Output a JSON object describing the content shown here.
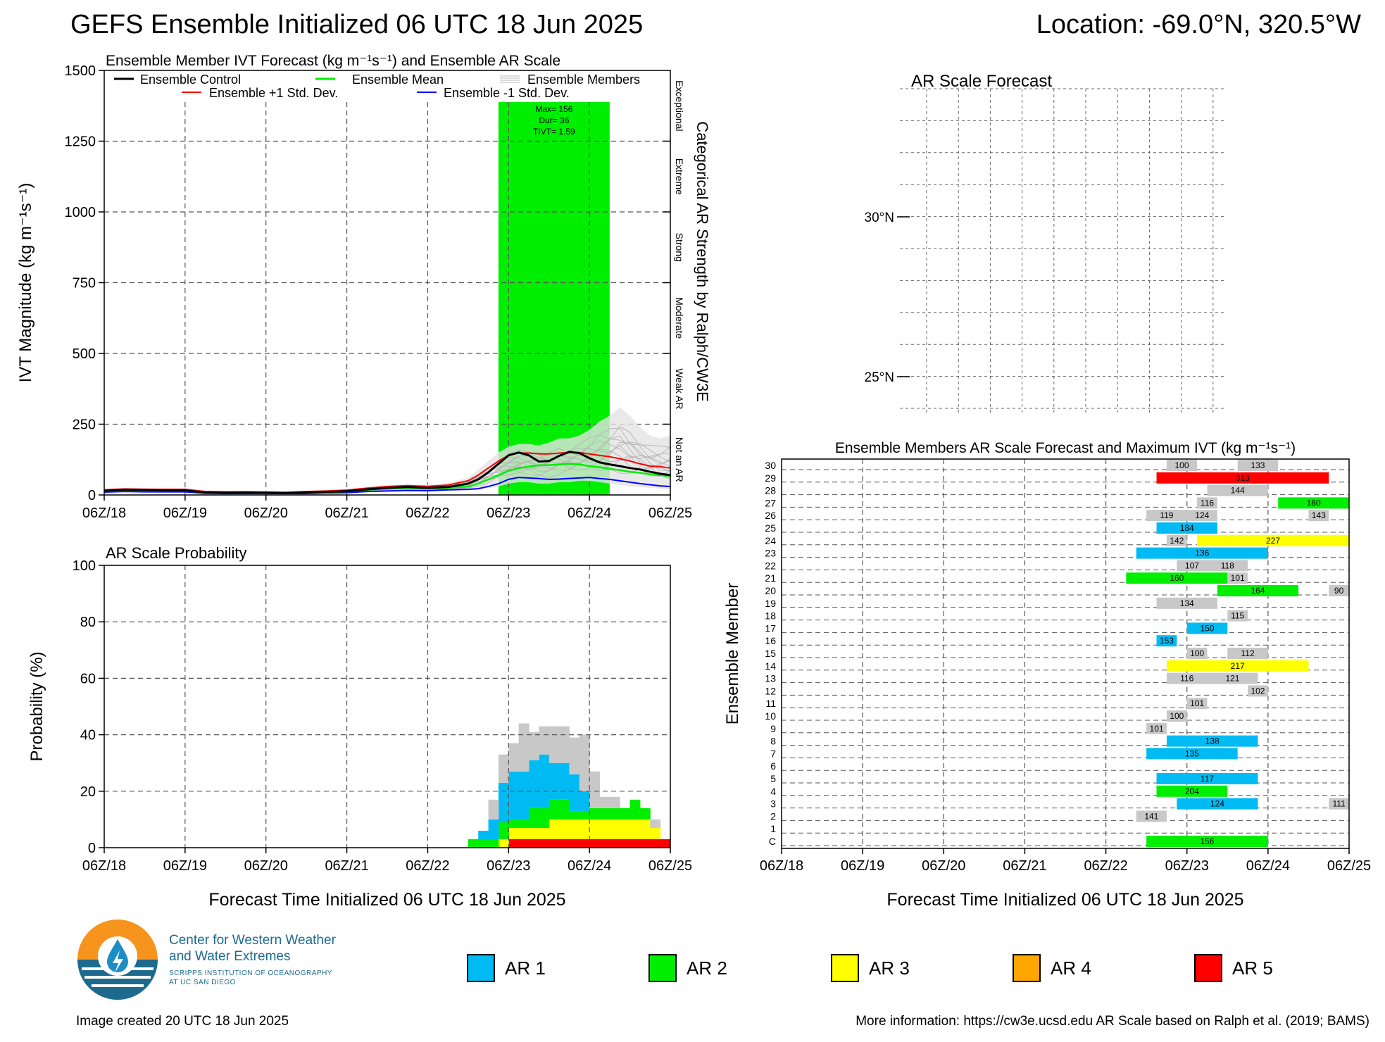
{
  "header": {
    "title": "GEFS Ensemble Initialized 06 UTC 18 Jun 2025",
    "location": "Location: -69.0°N, 320.5°W"
  },
  "x_ticks": [
    "06Z/18",
    "06Z/19",
    "06Z/20",
    "06Z/21",
    "06Z/22",
    "06Z/23",
    "06Z/24",
    "06Z/25"
  ],
  "x_axis_label": "Forecast Time Initialized 06 UTC 18 Jun 2025",
  "colors": {
    "ar1": "#00bbf3",
    "ar2": "#00ee00",
    "ar3": "#ffff00",
    "ar4": "#ffa500",
    "ar5": "#ff0000",
    "none": "#c8c8c8",
    "control": "#000000",
    "mean": "#00ee00",
    "plus": "#ff0000",
    "minus": "#0000ff",
    "members": "#b8b8b8"
  },
  "chart_data": [
    {
      "type": "line",
      "title": "Ensemble Member IVT Forecast (kg m⁻¹s⁻¹) and Ensemble AR Scale",
      "ylabel": "IVT Magnitude (kg m⁻¹s⁻¹)",
      "right_label": "Categorical AR Strength by Ralph/CW3E",
      "ylim": [
        0,
        1500
      ],
      "yticks": [
        0,
        250,
        500,
        750,
        1000,
        1250,
        1500
      ],
      "xlim": [
        0,
        168
      ],
      "grid": true,
      "categories_right": [
        "Not an AR",
        "Weak AR",
        "Moderate",
        "Strong",
        "Extreme",
        "Exceptional"
      ],
      "legend": {
        "control": "Ensemble Control",
        "mean": "Ensemble Mean",
        "members": "Ensemble Members",
        "plus": "Ensemble +1 Std. Dev.",
        "minus": "Ensemble -1 Std. Dev."
      },
      "annotation": [
        "Max= 156",
        "Dur= 36",
        "TIVT= 1.59"
      ],
      "ar_band": {
        "start": 117,
        "end": 150,
        "level": 2
      },
      "x_hours": [
        0,
        6,
        12,
        18,
        24,
        30,
        36,
        42,
        48,
        54,
        60,
        66,
        72,
        78,
        84,
        90,
        96,
        102,
        108,
        111,
        114,
        117,
        120,
        123,
        126,
        129,
        132,
        135,
        138,
        141,
        144,
        147,
        150,
        153,
        156,
        159,
        162,
        165,
        168
      ],
      "series": [
        {
          "name": "control",
          "values": [
            15,
            18,
            17,
            16,
            16,
            9,
            8,
            9,
            8,
            7,
            9,
            11,
            13,
            20,
            25,
            28,
            25,
            28,
            40,
            55,
            80,
            110,
            140,
            150,
            140,
            118,
            120,
            138,
            152,
            148,
            130,
            115,
            108,
            102,
            95,
            90,
            82,
            75,
            70
          ]
        },
        {
          "name": "mean",
          "values": [
            14,
            16,
            15,
            15,
            15,
            9,
            8,
            8,
            7,
            7,
            8,
            10,
            12,
            18,
            22,
            25,
            22,
            25,
            30,
            40,
            55,
            70,
            85,
            95,
            100,
            105,
            105,
            108,
            110,
            108,
            102,
            98,
            92,
            88,
            82,
            78,
            73,
            70,
            66
          ]
        },
        {
          "name": "plus",
          "values": [
            18,
            21,
            20,
            20,
            20,
            12,
            11,
            11,
            10,
            9,
            12,
            14,
            17,
            24,
            30,
            33,
            30,
            35,
            50,
            70,
            95,
            120,
            140,
            148,
            148,
            145,
            145,
            148,
            150,
            150,
            145,
            140,
            135,
            128,
            120,
            110,
            102,
            100,
            95
          ]
        },
        {
          "name": "minus",
          "values": [
            10,
            12,
            11,
            11,
            11,
            6,
            5,
            5,
            5,
            5,
            5,
            7,
            8,
            12,
            14,
            16,
            15,
            18,
            20,
            22,
            30,
            40,
            55,
            62,
            60,
            58,
            55,
            56,
            58,
            60,
            62,
            58,
            55,
            50,
            45,
            40,
            36,
            32,
            30
          ]
        }
      ],
      "member_ranges": {
        "low": [
          8,
          10,
          9,
          9,
          9,
          5,
          4,
          4,
          4,
          4,
          4,
          6,
          7,
          10,
          12,
          14,
          13,
          15,
          15,
          20,
          25,
          30,
          40,
          45,
          45,
          40,
          40,
          45,
          45,
          50,
          50,
          45,
          40,
          35,
          30,
          28,
          25,
          22,
          20
        ],
        "high": [
          22,
          25,
          24,
          23,
          23,
          14,
          13,
          13,
          12,
          11,
          14,
          16,
          20,
          28,
          34,
          38,
          36,
          42,
          60,
          90,
          120,
          150,
          170,
          180,
          180,
          175,
          185,
          200,
          200,
          210,
          230,
          260,
          280,
          310,
          280,
          240,
          210,
          200,
          210
        ]
      }
    },
    {
      "type": "area",
      "title": "AR Scale Probability",
      "ylabel": "Probability (%)",
      "ylim": [
        0,
        100
      ],
      "yticks": [
        0,
        20,
        40,
        60,
        80,
        100
      ],
      "xlim": [
        0,
        168
      ],
      "grid": true,
      "x_hours": [
        105,
        108,
        111,
        114,
        117,
        120,
        123,
        126,
        129,
        132,
        135,
        138,
        141,
        144,
        147,
        150,
        153,
        156,
        159,
        162,
        165
      ],
      "series": [
        {
          "name": "AR 5",
          "values": [
            0,
            0,
            0,
            0,
            0,
            3,
            3,
            3,
            3,
            3,
            3,
            3,
            3,
            3,
            3,
            3,
            3,
            3,
            3,
            3,
            3
          ]
        },
        {
          "name": "AR 4",
          "values": [
            0,
            0,
            0,
            0,
            0,
            0,
            0,
            0,
            0,
            0,
            0,
            0,
            0,
            0,
            0,
            0,
            0,
            0,
            0,
            0,
            0
          ]
        },
        {
          "name": "AR 3",
          "values": [
            0,
            0,
            0,
            0,
            3,
            4,
            4,
            4,
            4,
            7,
            7,
            7,
            7,
            7,
            7,
            7,
            7,
            7,
            7,
            4,
            0
          ]
        },
        {
          "name": "AR 2",
          "values": [
            0,
            3,
            3,
            3,
            6,
            3,
            3,
            7,
            7,
            7,
            7,
            3,
            3,
            4,
            4,
            4,
            4,
            7,
            4,
            0,
            0
          ]
        },
        {
          "name": "AR 1",
          "values": [
            0,
            0,
            3,
            7,
            14,
            17,
            17,
            17,
            19,
            13,
            13,
            13,
            7,
            0,
            0,
            0,
            0,
            0,
            0,
            0,
            0
          ]
        },
        {
          "name": "none",
          "values": [
            0,
            0,
            0,
            7,
            10,
            10,
            17,
            10,
            10,
            13,
            13,
            13,
            20,
            13,
            4,
            4,
            0,
            0,
            0,
            3,
            0
          ]
        }
      ]
    },
    {
      "type": "map",
      "title": "AR Scale Forecast",
      "lat_labels": [
        "30°N",
        "25°N"
      ]
    },
    {
      "type": "bar",
      "title": "Ensemble Members AR Scale Forecast and Maximum IVT (kg m⁻¹s⁻¹)",
      "ylabel": "Ensemble Member",
      "xlim": [
        0,
        168
      ],
      "members": [
        "C",
        "1",
        "2",
        "3",
        "4",
        "5",
        "6",
        "7",
        "8",
        "9",
        "10",
        "11",
        "12",
        "13",
        "14",
        "15",
        "16",
        "17",
        "18",
        "19",
        "20",
        "21",
        "22",
        "23",
        "24",
        "25",
        "26",
        "27",
        "28",
        "29",
        "30"
      ],
      "events": [
        {
          "m": "C",
          "start": 108,
          "end": 144,
          "level": 2,
          "label": "156"
        },
        {
          "m": "2",
          "start": 105,
          "end": 114,
          "level": 0,
          "label": "141"
        },
        {
          "m": "3",
          "start": 117,
          "end": 141,
          "level": 1,
          "label": "124"
        },
        {
          "m": "3",
          "start": 162,
          "end": 168,
          "level": 0,
          "label": "111"
        },
        {
          "m": "4",
          "start": 111,
          "end": 132,
          "level": 2,
          "label": "204"
        },
        {
          "m": "5",
          "start": 111,
          "end": 141,
          "level": 1,
          "label": "117"
        },
        {
          "m": "7",
          "start": 108,
          "end": 135,
          "level": 1,
          "label": "135"
        },
        {
          "m": "8",
          "start": 114,
          "end": 141,
          "level": 1,
          "label": "138"
        },
        {
          "m": "9",
          "start": 108,
          "end": 114,
          "level": 0,
          "label": "101"
        },
        {
          "m": "10",
          "start": 114,
          "end": 120,
          "level": 0,
          "label": "100"
        },
        {
          "m": "11",
          "start": 120,
          "end": 126,
          "level": 0,
          "label": "101"
        },
        {
          "m": "12",
          "start": 138,
          "end": 144,
          "level": 0,
          "label": "102"
        },
        {
          "m": "13",
          "start": 114,
          "end": 126,
          "level": 0,
          "label": "116"
        },
        {
          "m": "13",
          "start": 126,
          "end": 141,
          "level": 0,
          "label": "121"
        },
        {
          "m": "14",
          "start": 114,
          "end": 156,
          "level": 3,
          "label": "217"
        },
        {
          "m": "15",
          "start": 120,
          "end": 126,
          "level": 0,
          "label": "100"
        },
        {
          "m": "15",
          "start": 132,
          "end": 144,
          "level": 0,
          "label": "112"
        },
        {
          "m": "16",
          "start": 111,
          "end": 117,
          "level": 1,
          "label": "153"
        },
        {
          "m": "17",
          "start": 120,
          "end": 132,
          "level": 1,
          "label": "150"
        },
        {
          "m": "18",
          "start": 132,
          "end": 138,
          "level": 0,
          "label": "115"
        },
        {
          "m": "19",
          "start": 111,
          "end": 129,
          "level": 0,
          "label": "134"
        },
        {
          "m": "20",
          "start": 129,
          "end": 153,
          "level": 2,
          "label": "164"
        },
        {
          "m": "20",
          "start": 162,
          "end": 168,
          "level": 0,
          "label": "90"
        },
        {
          "m": "21",
          "start": 102,
          "end": 132,
          "level": 2,
          "label": "160"
        },
        {
          "m": "21",
          "start": 132,
          "end": 138,
          "level": 0,
          "label": "101"
        },
        {
          "m": "22",
          "start": 117,
          "end": 126,
          "level": 0,
          "label": "107"
        },
        {
          "m": "22",
          "start": 126,
          "end": 138,
          "level": 0,
          "label": "118"
        },
        {
          "m": "23",
          "start": 105,
          "end": 144,
          "level": 1,
          "label": "136"
        },
        {
          "m": "24",
          "start": 114,
          "end": 120,
          "level": 0,
          "label": "142"
        },
        {
          "m": "24",
          "start": 123,
          "end": 168,
          "level": 3,
          "label": "227"
        },
        {
          "m": "25",
          "start": 111,
          "end": 129,
          "level": 1,
          "label": "184"
        },
        {
          "m": "26",
          "start": 108,
          "end": 120,
          "level": 0,
          "label": "119"
        },
        {
          "m": "26",
          "start": 120,
          "end": 129,
          "level": 0,
          "label": "124"
        },
        {
          "m": "26",
          "start": 156,
          "end": 162,
          "level": 0,
          "label": "143"
        },
        {
          "m": "27",
          "start": 123,
          "end": 129,
          "level": 0,
          "label": "116"
        },
        {
          "m": "27",
          "start": 147,
          "end": 168,
          "level": 2,
          "label": "180"
        },
        {
          "m": "28",
          "start": 126,
          "end": 144,
          "level": 0,
          "label": "144"
        },
        {
          "m": "29",
          "start": 111,
          "end": 162,
          "level": 5,
          "label": "313"
        },
        {
          "m": "30",
          "start": 114,
          "end": 123,
          "level": 0,
          "label": "100"
        },
        {
          "m": "30",
          "start": 135,
          "end": 147,
          "level": 0,
          "label": "133"
        }
      ]
    }
  ],
  "legend": [
    {
      "label": "AR 1",
      "color": "#00bbf3"
    },
    {
      "label": "AR 2",
      "color": "#00ee00"
    },
    {
      "label": "AR 3",
      "color": "#ffff00"
    },
    {
      "label": "AR 4",
      "color": "#ffa500"
    },
    {
      "label": "AR 5",
      "color": "#ff0000"
    }
  ],
  "logo": {
    "line1": "Center for Western Weather",
    "line2": "and Water Extremes",
    "line3": "SCRIPPS INSTITUTION OF OCEANOGRAPHY",
    "line4": "AT UC SAN DIEGO"
  },
  "footer": {
    "created": "Image created 20 UTC 18 Jun 2025",
    "info": "More information: https://cw3e.ucsd.edu AR Scale based on Ralph et al. (2019; BAMS)"
  }
}
